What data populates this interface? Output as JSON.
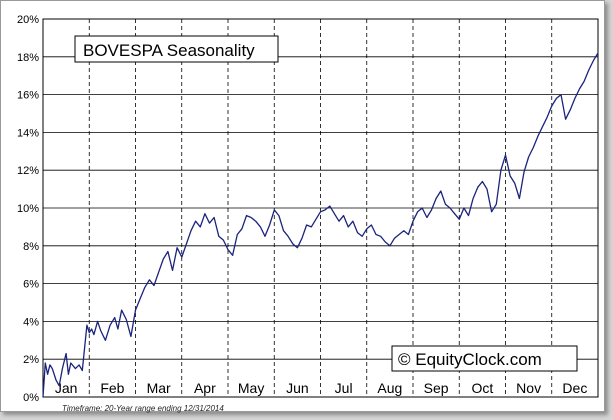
{
  "chart_data": {
    "type": "line",
    "title": "BOVESPA Seasonality",
    "watermark": "© EquityClock.com",
    "footnote": "Timeframe: 20-Year range ending 12/31/2014",
    "months": [
      "Jan",
      "Feb",
      "Mar",
      "Apr",
      "May",
      "Jun",
      "Jul",
      "Aug",
      "Sep",
      "Oct",
      "Nov",
      "Dec"
    ],
    "y_ticks": [
      "0%",
      "2%",
      "4%",
      "6%",
      "8%",
      "10%",
      "12%",
      "14%",
      "16%",
      "18%",
      "20%"
    ],
    "ylim": [
      0,
      20
    ],
    "xlim": [
      0,
      12
    ],
    "line_color": "#1a237e",
    "series": [
      {
        "name": "BOVESPA",
        "x": [
          0,
          0.05,
          0.1,
          0.15,
          0.2,
          0.28,
          0.35,
          0.42,
          0.5,
          0.55,
          0.6,
          0.7,
          0.78,
          0.85,
          0.9,
          0.95,
          1.0,
          1.05,
          1.1,
          1.18,
          1.25,
          1.35,
          1.45,
          1.55,
          1.62,
          1.7,
          1.8,
          1.9,
          2.0,
          2.1,
          2.2,
          2.3,
          2.4,
          2.5,
          2.6,
          2.7,
          2.8,
          2.9,
          3.0,
          3.1,
          3.2,
          3.3,
          3.4,
          3.5,
          3.6,
          3.7,
          3.8,
          3.9,
          4.0,
          4.1,
          4.2,
          4.3,
          4.4,
          4.5,
          4.6,
          4.7,
          4.8,
          4.9,
          5.0,
          5.1,
          5.2,
          5.3,
          5.4,
          5.5,
          5.6,
          5.7,
          5.8,
          5.9,
          6.0,
          6.1,
          6.2,
          6.3,
          6.4,
          6.5,
          6.6,
          6.7,
          6.8,
          6.9,
          7.0,
          7.1,
          7.2,
          7.3,
          7.4,
          7.5,
          7.6,
          7.7,
          7.8,
          7.9,
          8.0,
          8.1,
          8.2,
          8.3,
          8.4,
          8.5,
          8.6,
          8.7,
          8.8,
          8.9,
          9.0,
          9.1,
          9.2,
          9.3,
          9.4,
          9.5,
          9.6,
          9.7,
          9.8,
          9.9,
          10.0,
          10.1,
          10.2,
          10.3,
          10.4,
          10.5,
          10.6,
          10.7,
          10.8,
          10.9,
          11.0,
          11.1,
          11.2,
          11.3,
          11.4,
          11.5,
          11.6,
          11.7,
          11.8,
          11.9,
          12.0
        ],
        "values": [
          0,
          1.8,
          1.2,
          1.7,
          1.5,
          0.9,
          0.6,
          1.5,
          2.3,
          1.2,
          1.8,
          1.5,
          1.7,
          1.4,
          2.6,
          3.8,
          3.4,
          3.6,
          3.3,
          4.0,
          3.5,
          3.0,
          3.8,
          4.2,
          3.6,
          4.6,
          4.1,
          3.2,
          4.6,
          5.2,
          5.8,
          6.2,
          5.9,
          6.6,
          7.3,
          7.7,
          6.7,
          7.9,
          7.4,
          8.1,
          8.8,
          9.3,
          9.0,
          9.7,
          9.2,
          9.5,
          8.5,
          8.3,
          7.8,
          7.5,
          8.6,
          8.9,
          9.6,
          9.5,
          9.3,
          9.0,
          8.5,
          9.1,
          9.9,
          9.6,
          8.8,
          8.5,
          8.1,
          7.9,
          8.4,
          9.1,
          9.0,
          9.4,
          9.8,
          9.9,
          10.1,
          9.7,
          9.3,
          9.6,
          9.0,
          9.3,
          8.7,
          8.5,
          8.9,
          9.1,
          8.6,
          8.5,
          8.2,
          8.0,
          8.4,
          8.6,
          8.8,
          8.6,
          9.3,
          9.8,
          10.0,
          9.5,
          9.9,
          10.5,
          10.9,
          10.2,
          10.0,
          9.7,
          9.4,
          10.0,
          9.6,
          10.5,
          11.1,
          11.4,
          11.0,
          9.8,
          10.2,
          12.0,
          12.8,
          11.7,
          11.3,
          10.5,
          11.9,
          12.7,
          13.2,
          13.8,
          14.3,
          14.8,
          15.4,
          15.8,
          16.0,
          14.7,
          15.2,
          15.8,
          16.3,
          16.7,
          17.3,
          17.8,
          18.2
        ]
      }
    ]
  }
}
